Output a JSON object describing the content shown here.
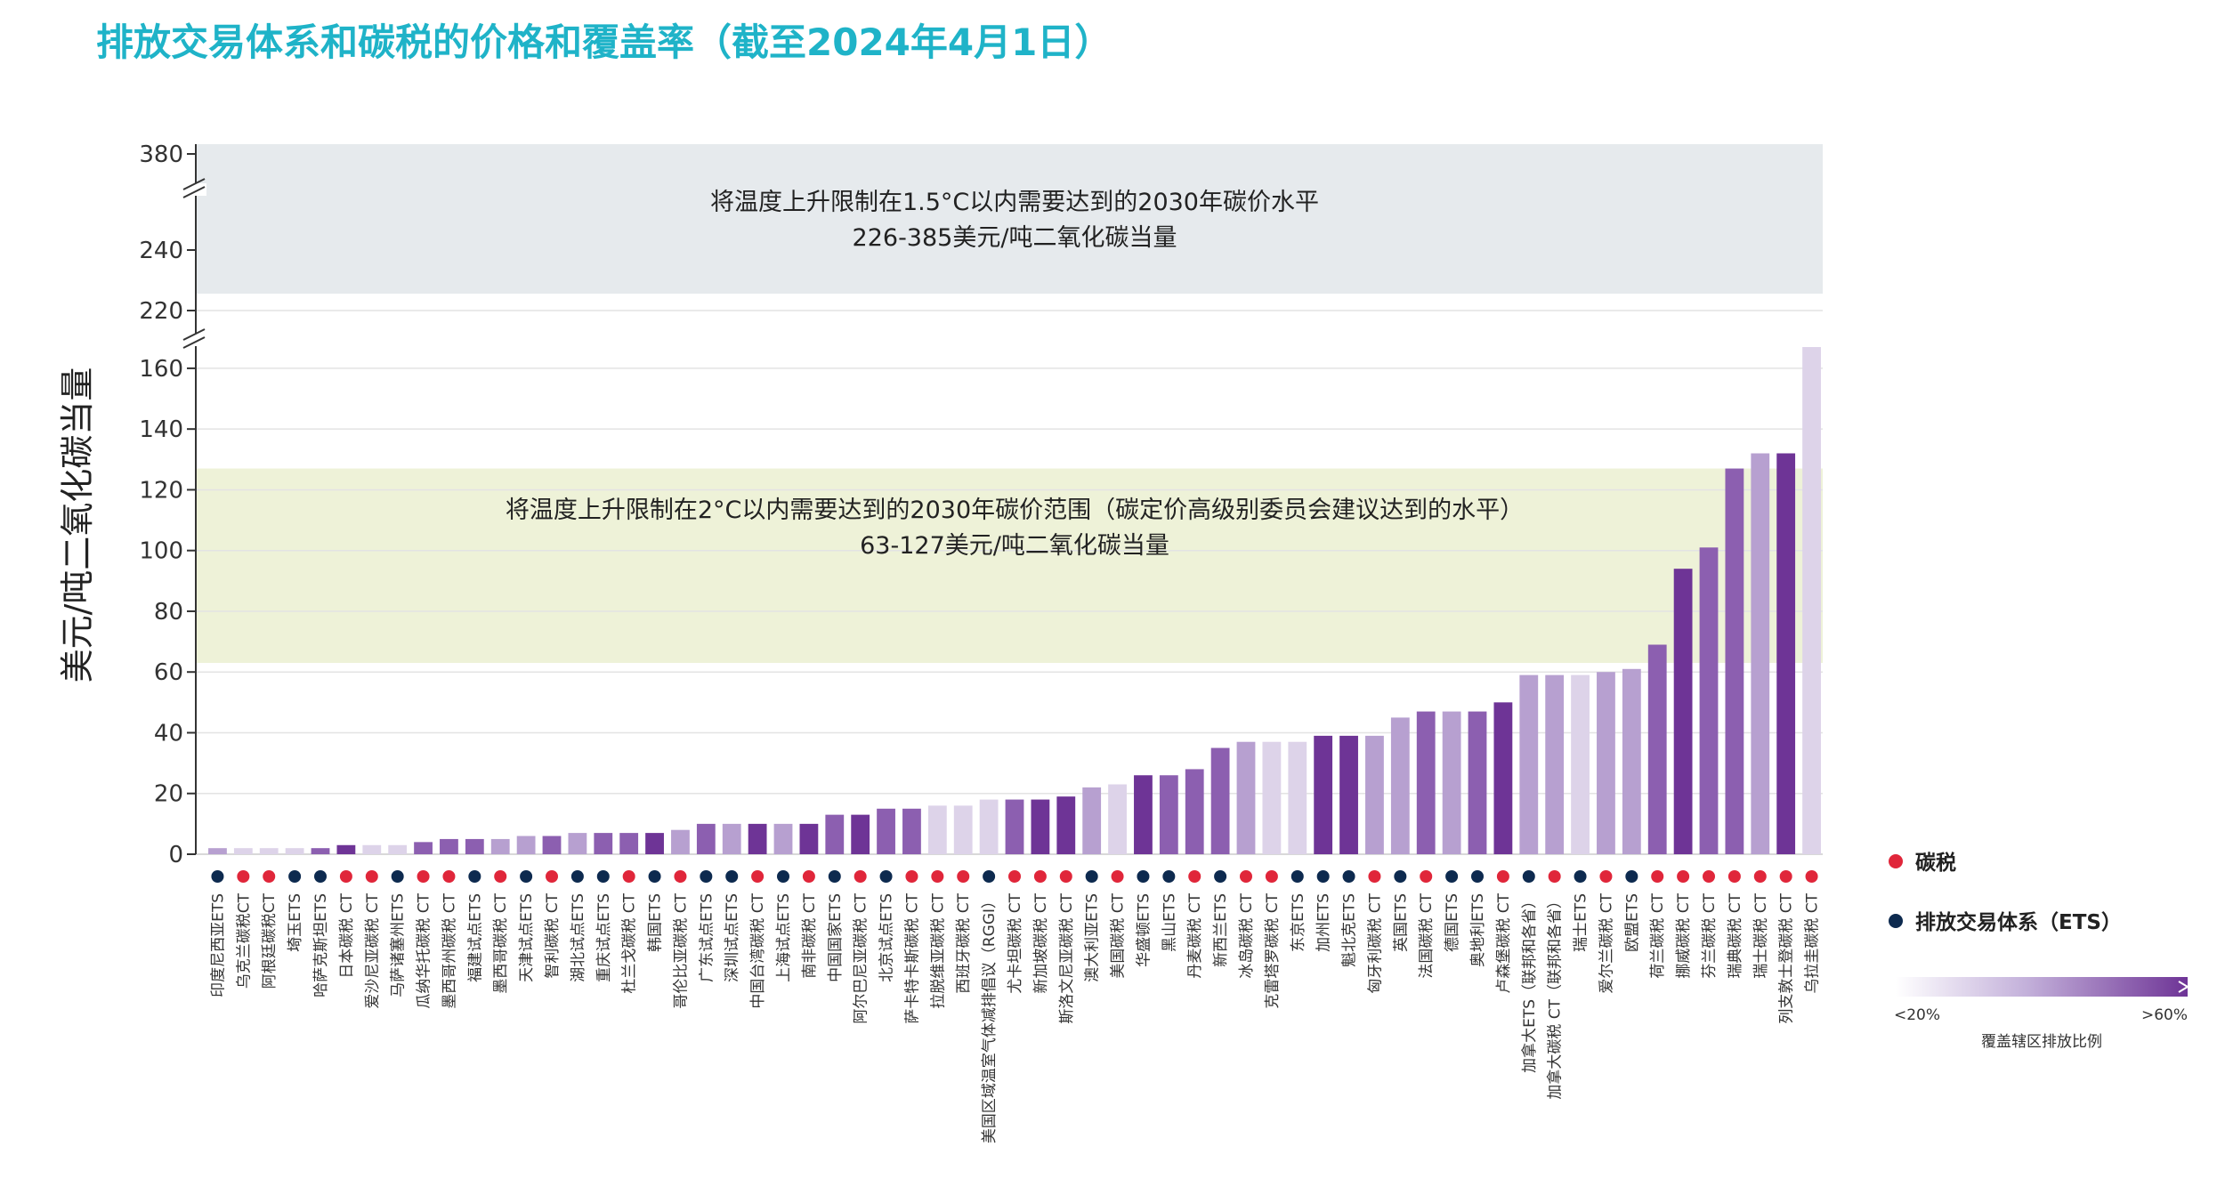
{
  "title": "排放交易体系和碳税的价格和覆盖率（截至2024年4月1日）",
  "chart_data": {
    "type": "bar",
    "ylabel": "美元/吨二氧化碳当量",
    "y_ticks_low": [
      "0",
      "20",
      "40",
      "60",
      "80",
      "100",
      "120",
      "140",
      "160"
    ],
    "y_ticks_high": [
      "220",
      "240",
      "380"
    ],
    "band_15": {
      "line1": "将温度上升限制在1.5°C以内需要达到的2030年碳价水平",
      "line2": "226-385美元/吨二氧化碳当量"
    },
    "band_2": {
      "line1": "将温度上升限制在2°C以内需要达到的2030年碳价范围（碳定价高级别委员会建议达到的水平）",
      "line2": "63-127美元/吨二氧化碳当量"
    },
    "legend": {
      "tax": "碳税",
      "ets": "排放交易体系（ETS）",
      "gradient_low": "<20%",
      "gradient_high": ">60%",
      "gradient_title": "覆盖辖区排放比例"
    },
    "colors": {
      "tax_dot": "#e0263a",
      "ets_dot": "#0d2a4f",
      "band_15": "#e6eaed",
      "band_2": "#eef2d8",
      "bar_levels": [
        "#ddd3e9",
        "#b7a0d0",
        "#8c5fb0",
        "#6e3496"
      ]
    },
    "bars": [
      {
        "label": "印度尼西亚ETS",
        "value": 2,
        "type": "ets",
        "level": 1
      },
      {
        "label": "乌克兰碳税CT",
        "value": 2,
        "type": "tax",
        "level": 0
      },
      {
        "label": "阿根廷碳税CT",
        "value": 2,
        "type": "tax",
        "level": 0
      },
      {
        "label": "埼玉ETS",
        "value": 2,
        "type": "ets",
        "level": 0
      },
      {
        "label": "哈萨克斯坦ETS",
        "value": 2,
        "type": "ets",
        "level": 2
      },
      {
        "label": "日本碳税 CT",
        "value": 3,
        "type": "tax",
        "level": 3
      },
      {
        "label": "爱沙尼亚碳税 CT",
        "value": 3,
        "type": "tax",
        "level": 0
      },
      {
        "label": "马萨诸塞州ETS",
        "value": 3,
        "type": "ets",
        "level": 0
      },
      {
        "label": "瓜纳华托碳税 CT",
        "value": 4,
        "type": "tax",
        "level": 2
      },
      {
        "label": "墨西哥州碳税 CT",
        "value": 5,
        "type": "tax",
        "level": 2
      },
      {
        "label": "福建试点ETS",
        "value": 5,
        "type": "ets",
        "level": 2
      },
      {
        "label": "墨西哥碳税 CT",
        "value": 5,
        "type": "tax",
        "level": 1
      },
      {
        "label": "天津试点ETS",
        "value": 6,
        "type": "ets",
        "level": 1
      },
      {
        "label": "智利碳税 CT",
        "value": 6,
        "type": "tax",
        "level": 2
      },
      {
        "label": "湖北试点ETS",
        "value": 7,
        "type": "ets",
        "level": 1
      },
      {
        "label": "重庆试点ETS",
        "value": 7,
        "type": "ets",
        "level": 2
      },
      {
        "label": "杜兰戈碳税 CT",
        "value": 7,
        "type": "tax",
        "level": 2
      },
      {
        "label": "韩国ETS",
        "value": 7,
        "type": "ets",
        "level": 3
      },
      {
        "label": "哥伦比亚碳税 CT",
        "value": 8,
        "type": "tax",
        "level": 1
      },
      {
        "label": "广东试点ETS",
        "value": 10,
        "type": "ets",
        "level": 2
      },
      {
        "label": "深圳试点ETS",
        "value": 10,
        "type": "ets",
        "level": 1
      },
      {
        "label": "中国台湾碳税 CT",
        "value": 10,
        "type": "tax",
        "level": 3
      },
      {
        "label": "上海试点ETS",
        "value": 10,
        "type": "ets",
        "level": 1
      },
      {
        "label": "南非碳税 CT",
        "value": 10,
        "type": "tax",
        "level": 3
      },
      {
        "label": "中国国家ETS",
        "value": 13,
        "type": "ets",
        "level": 2
      },
      {
        "label": "阿尔巴尼亚碳税 CT",
        "value": 13,
        "type": "tax",
        "level": 3
      },
      {
        "label": "北京试点ETS",
        "value": 15,
        "type": "ets",
        "level": 2
      },
      {
        "label": "萨卡特卡斯碳税 CT",
        "value": 15,
        "type": "tax",
        "level": 2
      },
      {
        "label": "拉脱维亚碳税 CT",
        "value": 16,
        "type": "tax",
        "level": 0
      },
      {
        "label": "西班牙碳税 CT",
        "value": 16,
        "type": "tax",
        "level": 0
      },
      {
        "label": "美国区域温室气体减排倡议（RGGI）",
        "value": 18,
        "type": "ets",
        "level": 0
      },
      {
        "label": "尤卡坦碳税 CT",
        "value": 18,
        "type": "tax",
        "level": 2
      },
      {
        "label": "新加坡碳税 CT",
        "value": 18,
        "type": "tax",
        "level": 3
      },
      {
        "label": "斯洛文尼亚碳税 CT",
        "value": 19,
        "type": "tax",
        "level": 3
      },
      {
        "label": "澳大利亚ETS",
        "value": 22,
        "type": "ets",
        "level": 1
      },
      {
        "label": "美国碳税 CT",
        "value": 23,
        "type": "tax",
        "level": 0
      },
      {
        "label": "华盛顿ETS",
        "value": 26,
        "type": "ets",
        "level": 3
      },
      {
        "label": "黑山ETS",
        "value": 26,
        "type": "ets",
        "level": 2
      },
      {
        "label": "丹麦碳税 CT",
        "value": 28,
        "type": "tax",
        "level": 2
      },
      {
        "label": "新西兰ETS",
        "value": 35,
        "type": "ets",
        "level": 2
      },
      {
        "label": "冰岛碳税 CT",
        "value": 37,
        "type": "tax",
        "level": 1
      },
      {
        "label": "克雷塔罗碳税 CT",
        "value": 37,
        "type": "tax",
        "level": 0
      },
      {
        "label": "东京ETS",
        "value": 37,
        "type": "ets",
        "level": 0
      },
      {
        "label": "加州ETS",
        "value": 39,
        "type": "ets",
        "level": 3
      },
      {
        "label": "魁北克ETS",
        "value": 39,
        "type": "ets",
        "level": 3
      },
      {
        "label": "匈牙利碳税 CT",
        "value": 39,
        "type": "tax",
        "level": 1
      },
      {
        "label": "英国ETS",
        "value": 45,
        "type": "ets",
        "level": 1
      },
      {
        "label": "法国碳税 CT",
        "value": 47,
        "type": "tax",
        "level": 2
      },
      {
        "label": "德国ETS",
        "value": 47,
        "type": "ets",
        "level": 1
      },
      {
        "label": "奥地利ETS",
        "value": 47,
        "type": "ets",
        "level": 2
      },
      {
        "label": "卢森堡碳税 CT",
        "value": 50,
        "type": "tax",
        "level": 3
      },
      {
        "label": "加拿大ETS（联邦和各省）",
        "value": 59,
        "type": "ets",
        "level": 1
      },
      {
        "label": "加拿大碳税 CT（联邦和各省）",
        "value": 59,
        "type": "tax",
        "level": 1
      },
      {
        "label": "瑞士ETS",
        "value": 59,
        "type": "ets",
        "level": 0
      },
      {
        "label": "爱尔兰碳税 CT",
        "value": 60,
        "type": "tax",
        "level": 1
      },
      {
        "label": "欧盟ETS",
        "value": 61,
        "type": "ets",
        "level": 1
      },
      {
        "label": "荷兰碳税 CT",
        "value": 69,
        "type": "tax",
        "level": 2
      },
      {
        "label": "挪威碳税 CT",
        "value": 94,
        "type": "tax",
        "level": 3
      },
      {
        "label": "芬兰碳税 CT",
        "value": 101,
        "type": "tax",
        "level": 2
      },
      {
        "label": "瑞典碳税 CT",
        "value": 127,
        "type": "tax",
        "level": 2
      },
      {
        "label": "瑞士碳税 CT",
        "value": 132,
        "type": "tax",
        "level": 1
      },
      {
        "label": "列支敦士登碳税 CT",
        "value": 132,
        "type": "tax",
        "level": 3
      },
      {
        "label": "乌拉圭碳税 CT",
        "value": 167,
        "type": "tax",
        "level": 0
      }
    ]
  }
}
